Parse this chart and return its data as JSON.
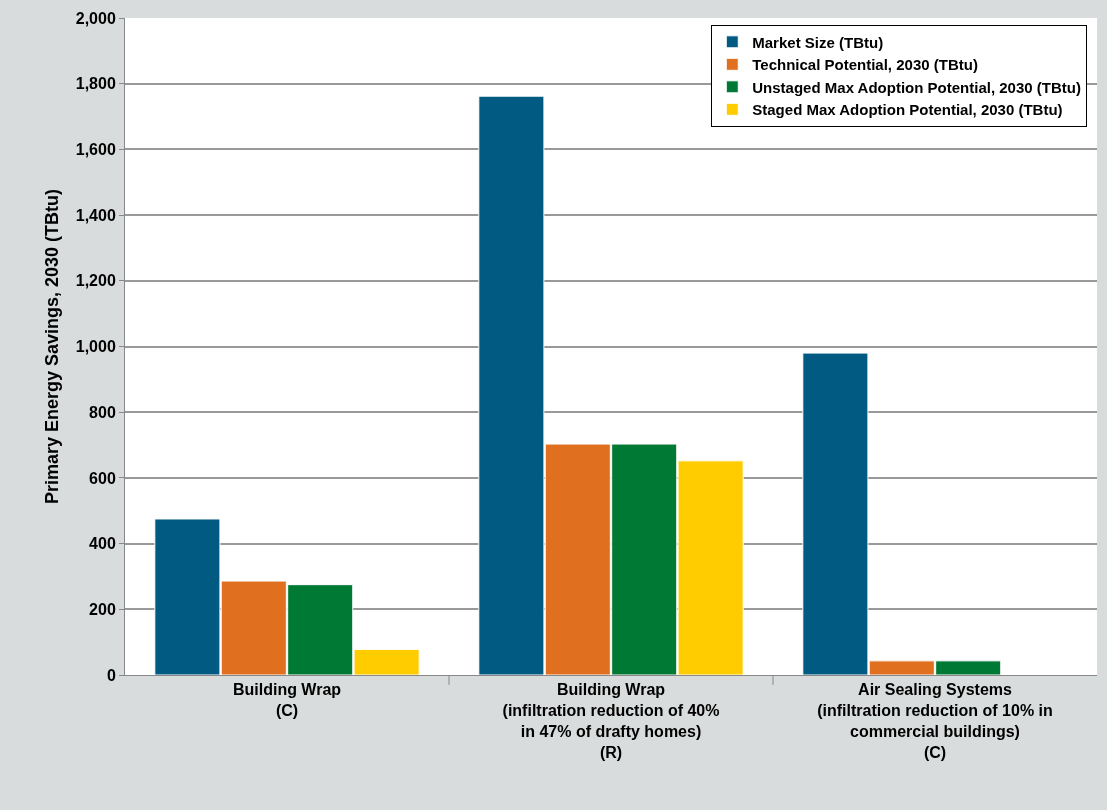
{
  "chart_data": {
    "type": "bar",
    "ylabel": "Primary Energy Savings, 2030 (TBtu)",
    "categories": [
      "Building Wrap\n(C)",
      "Building Wrap\n(infiltration reduction of 40%\nin 47% of drafty homes)\n(R)",
      "Air Sealing Systems\n(infiltration reduction of 10% in\ncommercial buildings)\n(C)"
    ],
    "series": [
      {
        "name": "Market Size (TBtu)",
        "color": "#005a82",
        "values": [
          475,
          1762,
          980
        ]
      },
      {
        "name": "Technical Potential, 2030 (TBtu)",
        "color": "#e07020",
        "values": [
          286,
          703,
          43
        ]
      },
      {
        "name": "Unstaged Max Adoption Potential, 2030 (TBtu)",
        "color": "#007935",
        "values": [
          275,
          703,
          43
        ]
      },
      {
        "name": "Staged Max Adoption Potential, 2030 (TBtu)",
        "color": "#ffcc00",
        "values": [
          78,
          652,
          null
        ]
      }
    ],
    "ylim": [
      0,
      2000
    ],
    "yticks": [
      {
        "value": 0,
        "label": "0"
      },
      {
        "value": 200,
        "label": "200"
      },
      {
        "value": 400,
        "label": "400"
      },
      {
        "value": 600,
        "label": "600"
      },
      {
        "value": 800,
        "label": "800"
      },
      {
        "value": 1000,
        "label": "1,000"
      },
      {
        "value": 1200,
        "label": "1,200"
      },
      {
        "value": 1400,
        "label": "1,400"
      },
      {
        "value": 1600,
        "label": "1,600"
      },
      {
        "value": 1800,
        "label": "1,800"
      },
      {
        "value": 2000,
        "label": "2,000"
      }
    ],
    "grid": "y",
    "legend": "top right"
  }
}
